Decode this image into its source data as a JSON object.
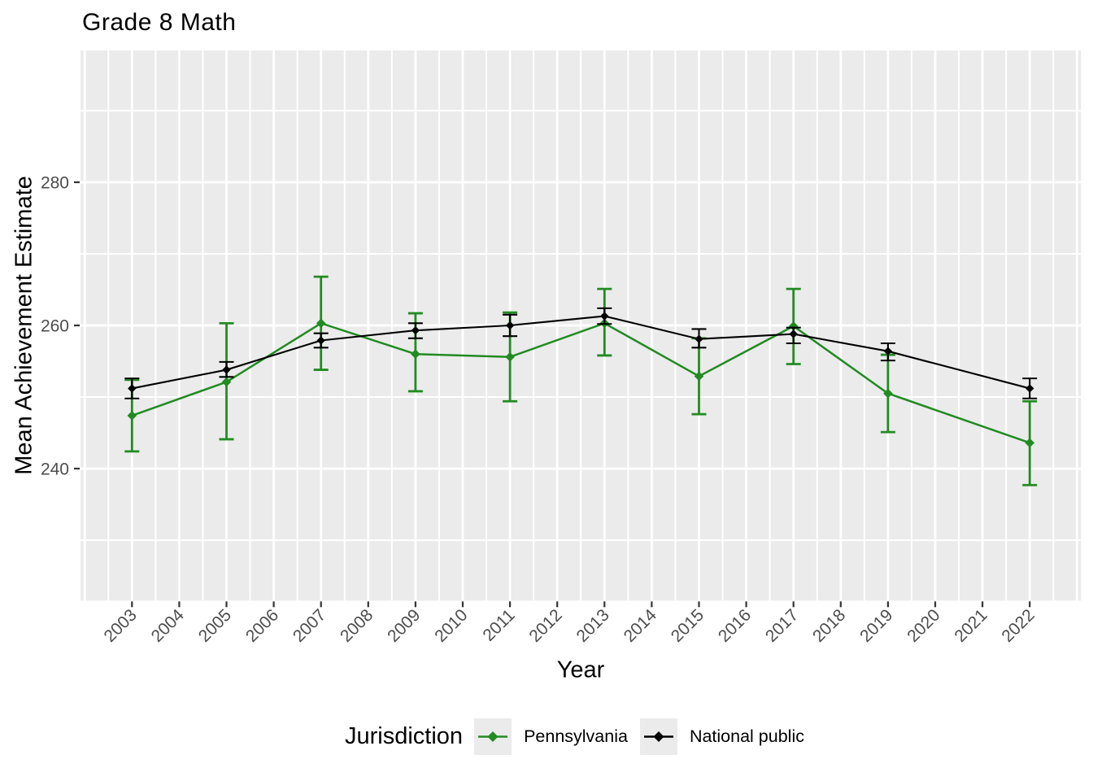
{
  "title": "Grade 8 Math",
  "axes": {
    "x_label": "Year",
    "y_label": "Mean Achievement Estimate",
    "y_tick_labels": [
      "240",
      "260",
      "280"
    ],
    "y_tick_values": [
      240,
      260,
      280
    ],
    "y_minor_gridlines": [
      230,
      250,
      270,
      290
    ],
    "x_tick_labels": [
      "2003",
      "2004",
      "2005",
      "2006",
      "2007",
      "2008",
      "2009",
      "2010",
      "2011",
      "2012",
      "2013",
      "2014",
      "2015",
      "2016",
      "2017",
      "2018",
      "2019",
      "2020",
      "2021",
      "2022"
    ],
    "x_tick_values": [
      2003,
      2004,
      2005,
      2006,
      2007,
      2008,
      2009,
      2010,
      2011,
      2012,
      2013,
      2014,
      2015,
      2016,
      2017,
      2018,
      2019,
      2020,
      2021,
      2022
    ]
  },
  "legend": {
    "title": "Jurisdiction",
    "items": [
      {
        "label": "Pennsylvania",
        "color": "#228B22"
      },
      {
        "label": "National public",
        "color": "#000000"
      }
    ]
  },
  "colors": {
    "panel_background": "#EBEBEB",
    "gridline": "#FFFFFF",
    "tick_label": "#4D4D4D",
    "tick_mark": "#333333",
    "pennsylvania": "#228B22",
    "national_public": "#000000"
  },
  "chart_data": {
    "type": "line",
    "title": "Grade 8 Math",
    "xlabel": "Year",
    "ylabel": "Mean Achievement Estimate",
    "x": [
      2003,
      2005,
      2007,
      2009,
      2011,
      2013,
      2015,
      2017,
      2019,
      2022
    ],
    "xlim": [
      2001.9,
      2023.1
    ],
    "ylim": [
      221,
      298.5
    ],
    "grid": true,
    "legend_position": "bottom",
    "marker": "diamond",
    "error_bars": true,
    "series": [
      {
        "name": "Pennsylvania",
        "color": "#228B22",
        "values": [
          247.4,
          252.1,
          260.3,
          256.0,
          255.6,
          260.3,
          252.9,
          259.9,
          250.5,
          243.6
        ],
        "ci_low": [
          242.4,
          244.1,
          253.8,
          250.8,
          249.4,
          255.8,
          247.6,
          254.6,
          245.1,
          237.7
        ],
        "ci_high": [
          252.4,
          260.3,
          266.8,
          261.7,
          261.8,
          265.1,
          258.2,
          265.1,
          255.9,
          249.4
        ]
      },
      {
        "name": "National public",
        "color": "#000000",
        "values": [
          251.2,
          253.8,
          257.9,
          259.3,
          260.0,
          261.3,
          258.1,
          258.8,
          256.4,
          251.2
        ],
        "ci_low": [
          249.8,
          252.8,
          256.9,
          258.2,
          258.5,
          260.2,
          256.9,
          257.5,
          255.1,
          249.8
        ],
        "ci_high": [
          252.6,
          254.9,
          258.9,
          260.3,
          261.5,
          262.4,
          259.5,
          259.7,
          257.5,
          252.6
        ]
      }
    ]
  }
}
